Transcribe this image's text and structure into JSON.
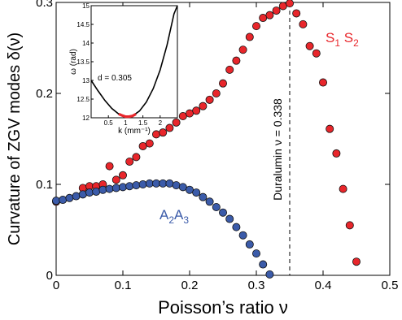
{
  "chart_data": {
    "type": "scatter",
    "title": "",
    "xlabel": "Poisson’s ratio  ν",
    "ylabel": "Curvature of ZGV modes  δ(ν)",
    "xlim": [
      0,
      0.5
    ],
    "ylim": [
      0,
      0.3
    ],
    "xticks": [
      "0",
      "0.1",
      "0.2",
      "0.3",
      "0.4",
      "0.5"
    ],
    "yticks": [
      "0",
      "0.1",
      "0.2",
      "0.3"
    ],
    "grid": false,
    "series": [
      {
        "name": "S1S2",
        "label_main": "S",
        "label_sub1": "1",
        "label_mid": " S",
        "label_sub2": "2",
        "color": "#e8262b",
        "points": [
          [
            0.0,
            0.081
          ],
          [
            0.04,
            0.096
          ],
          [
            0.05,
            0.098
          ],
          [
            0.06,
            0.098
          ],
          [
            0.07,
            0.1
          ],
          [
            0.08,
            0.12
          ],
          [
            0.09,
            0.105
          ],
          [
            0.1,
            0.11
          ],
          [
            0.11,
            0.125
          ],
          [
            0.12,
            0.13
          ],
          [
            0.13,
            0.142
          ],
          [
            0.14,
            0.145
          ],
          [
            0.15,
            0.155
          ],
          [
            0.16,
            0.157
          ],
          [
            0.17,
            0.162
          ],
          [
            0.18,
            0.168
          ],
          [
            0.19,
            0.175
          ],
          [
            0.2,
            0.178
          ],
          [
            0.21,
            0.181
          ],
          [
            0.22,
            0.186
          ],
          [
            0.23,
            0.193
          ],
          [
            0.24,
            0.2
          ],
          [
            0.25,
            0.211
          ],
          [
            0.26,
            0.226
          ],
          [
            0.27,
            0.236
          ],
          [
            0.28,
            0.248
          ],
          [
            0.29,
            0.262
          ],
          [
            0.3,
            0.274
          ],
          [
            0.31,
            0.283
          ],
          [
            0.32,
            0.286
          ],
          [
            0.33,
            0.291
          ],
          [
            0.34,
            0.296
          ],
          [
            0.35,
            0.299
          ],
          [
            0.36,
            0.288
          ],
          [
            0.37,
            0.276
          ],
          [
            0.38,
            0.252
          ],
          [
            0.39,
            0.244
          ],
          [
            0.4,
            0.212
          ],
          [
            0.41,
            0.161
          ],
          [
            0.42,
            0.134
          ],
          [
            0.43,
            0.095
          ],
          [
            0.44,
            0.055
          ],
          [
            0.45,
            0.015
          ]
        ]
      },
      {
        "name": "A2A3",
        "label_main": "A",
        "label_sub1": "2",
        "label_mid": "A",
        "label_sub2": "3",
        "color": "#3b5ba9",
        "points": [
          [
            0.0,
            0.082
          ],
          [
            0.01,
            0.083
          ],
          [
            0.02,
            0.085
          ],
          [
            0.03,
            0.087
          ],
          [
            0.04,
            0.089
          ],
          [
            0.05,
            0.091
          ],
          [
            0.06,
            0.092
          ],
          [
            0.07,
            0.094
          ],
          [
            0.08,
            0.095
          ],
          [
            0.09,
            0.096
          ],
          [
            0.1,
            0.097
          ],
          [
            0.11,
            0.098
          ],
          [
            0.12,
            0.099
          ],
          [
            0.13,
            0.1
          ],
          [
            0.14,
            0.101
          ],
          [
            0.15,
            0.101
          ],
          [
            0.16,
            0.101
          ],
          [
            0.17,
            0.101
          ],
          [
            0.18,
            0.099
          ],
          [
            0.19,
            0.097
          ],
          [
            0.2,
            0.094
          ],
          [
            0.21,
            0.091
          ],
          [
            0.22,
            0.086
          ],
          [
            0.23,
            0.081
          ],
          [
            0.24,
            0.075
          ],
          [
            0.25,
            0.069
          ],
          [
            0.26,
            0.062
          ],
          [
            0.27,
            0.053
          ],
          [
            0.28,
            0.044
          ],
          [
            0.29,
            0.034
          ],
          [
            0.3,
            0.024
          ],
          [
            0.31,
            0.012
          ],
          [
            0.32,
            0.001
          ]
        ]
      }
    ],
    "annotation": {
      "text": "Duralumin ν = 0.338",
      "x": 0.35
    },
    "inset": {
      "xlabel": "k (mm⁻¹)",
      "ylabel": "ω (rad)",
      "xlim": [
        0,
        2.5
      ],
      "ylim": [
        12,
        15
      ],
      "xticks": [
        "0.5",
        "1",
        "1.5",
        "2"
      ],
      "yticks": [
        "12",
        "12.5",
        "13",
        "13.5",
        "14",
        "14.5",
        "15"
      ],
      "note": "d = 0.305",
      "curve_color": "#000000",
      "highlight_color": "#e8262b",
      "curve": [
        [
          0.0,
          13.0
        ],
        [
          0.2,
          12.72
        ],
        [
          0.4,
          12.46
        ],
        [
          0.6,
          12.25
        ],
        [
          0.8,
          12.1
        ],
        [
          1.0,
          12.03
        ],
        [
          1.2,
          12.05
        ],
        [
          1.4,
          12.18
        ],
        [
          1.6,
          12.42
        ],
        [
          1.8,
          12.78
        ],
        [
          2.0,
          13.28
        ],
        [
          2.2,
          13.95
        ],
        [
          2.4,
          14.78
        ],
        [
          2.5,
          15.0
        ]
      ],
      "highlight": [
        [
          0.8,
          12.1
        ],
        [
          0.9,
          12.06
        ],
        [
          1.0,
          12.03
        ],
        [
          1.1,
          12.03
        ],
        [
          1.2,
          12.05
        ],
        [
          1.3,
          12.1
        ]
      ]
    }
  }
}
